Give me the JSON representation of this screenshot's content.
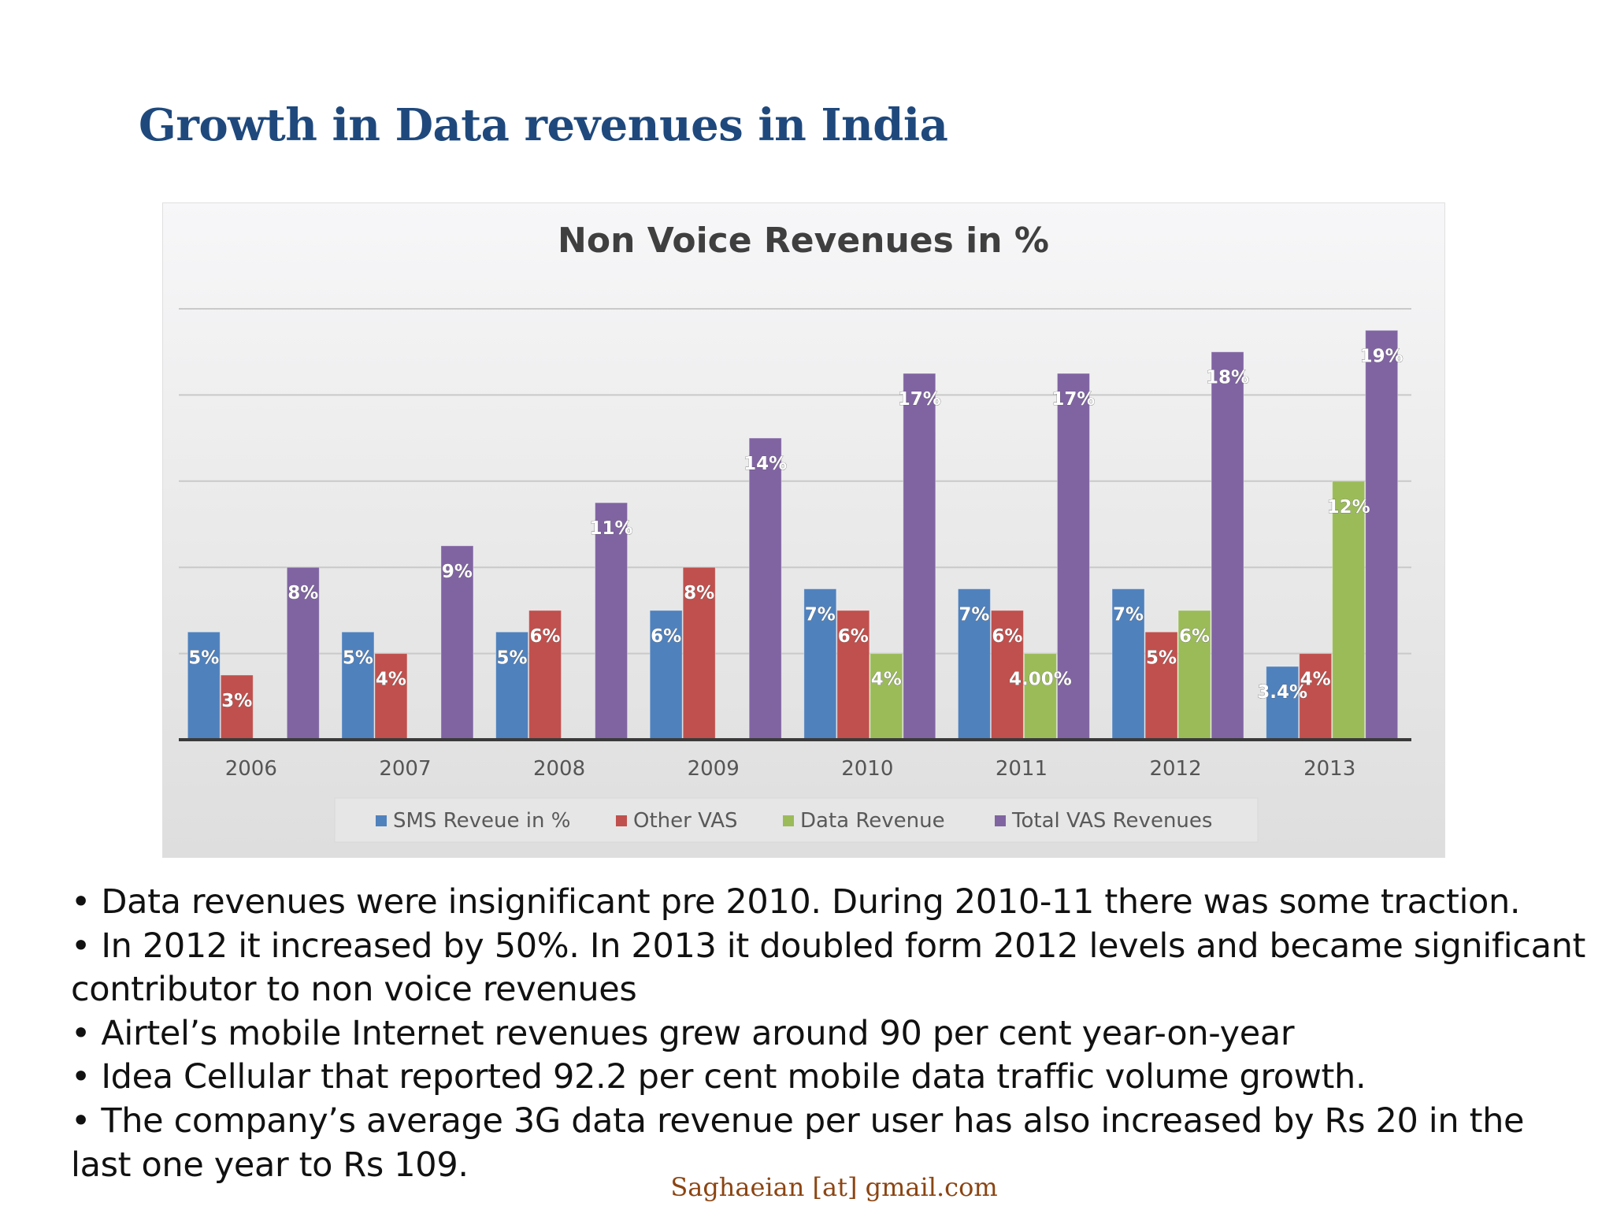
{
  "page": {
    "title": "Growth in Data revenues in India",
    "footer": "Saghaeian [at] gmail.com"
  },
  "bullets": [
    "• Data revenues were insignificant pre 2010. During 2010-11 there was some traction.",
    "• In 2012 it increased by 50%. In 2013 it doubled form 2012 levels and became significant contributor to non voice revenues",
    "• Airtel’s mobile Internet revenues grew around 90 per cent year-on-year",
    "• Idea Cellular that reported 92.2 per cent mobile data traffic volume growth.",
    "• The company’s average 3G data revenue per user has also increased by Rs 20 in the last one year to Rs 109."
  ],
  "chart_data": {
    "type": "bar",
    "title": "Non Voice Revenues in %",
    "xlabel": "",
    "ylabel": "",
    "ylim": [
      0,
      20
    ],
    "grid": true,
    "legend": "bottom",
    "categories": [
      "2006",
      "2007",
      "2008",
      "2009",
      "2010",
      "2011",
      "2012",
      "2013"
    ],
    "series": [
      {
        "name": "SMS Reveue in %",
        "color": "#4f81bd",
        "values": [
          5,
          5,
          5,
          6,
          7,
          7,
          7,
          3.4
        ],
        "labels": [
          "5%",
          "5%",
          "5%",
          "6%",
          "7%",
          "7%",
          "7%",
          "3.4%"
        ]
      },
      {
        "name": "Other VAS",
        "color": "#c0504d",
        "values": [
          3,
          4,
          6,
          8,
          6,
          6,
          5,
          4
        ],
        "labels": [
          "3%",
          "4%",
          "6%",
          "8%",
          "6%",
          "6%",
          "5%",
          "4%"
        ]
      },
      {
        "name": "Data Revenue",
        "color": "#9bbb59",
        "values": [
          null,
          null,
          null,
          null,
          4,
          4,
          6,
          12
        ],
        "labels": [
          "",
          "",
          "",
          "",
          "4%",
          "4.00%",
          "6%",
          "12%"
        ]
      },
      {
        "name": "Total VAS Revenues",
        "color": "#8064a2",
        "values": [
          8,
          9,
          11,
          14,
          17,
          17,
          18,
          19
        ],
        "labels": [
          "8%",
          "9%",
          "11%",
          "14%",
          "17%",
          "17%",
          "18%",
          "19%"
        ]
      }
    ]
  }
}
